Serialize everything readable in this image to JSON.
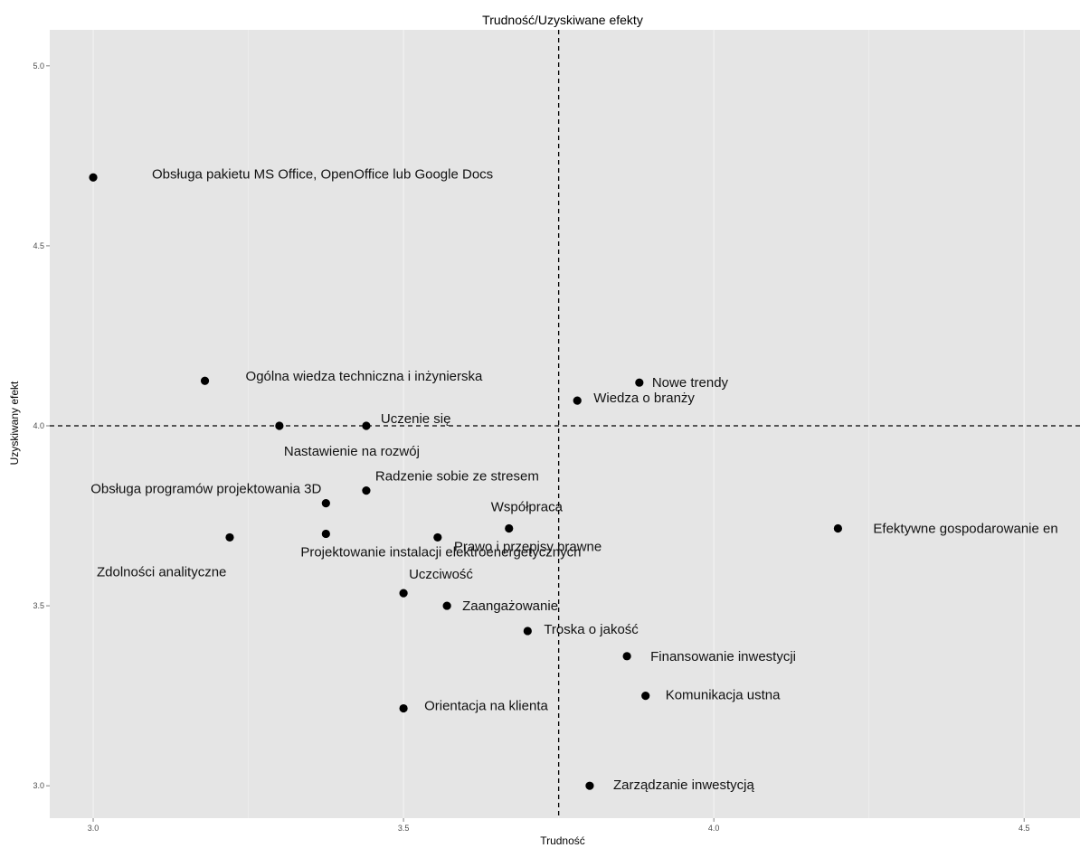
{
  "chart_data": {
    "type": "scatter",
    "title": "Trudność/Uzyskiwane efekty",
    "xlabel": "Trudność",
    "ylabel": "Uzyskiwany efekt",
    "xlim": [
      2.93,
      4.59
    ],
    "ylim": [
      2.91,
      5.1
    ],
    "xticks": [
      3.0,
      3.5,
      4.0,
      4.5
    ],
    "xtick_labels": [
      "3.0",
      "3.5",
      "4.0",
      "4.5"
    ],
    "yticks": [
      3.0,
      3.5,
      4.0,
      4.5,
      5.0
    ],
    "ytick_labels": [
      "3.0",
      "3.5",
      "4.0",
      "4.5",
      "5.0"
    ],
    "grid": true,
    "background": "#e5e5e5",
    "reference_lines": {
      "vline": 3.75,
      "hline": 4.0
    },
    "points": [
      {
        "x": 3.0,
        "y": 4.69,
        "label": "Obsługa pakietu MS Office, OpenOffice lub Google Docs"
      },
      {
        "x": 3.18,
        "y": 4.125,
        "label": "Ogólna wiedza techniczna i inżynierska"
      },
      {
        "x": 3.3,
        "y": 4.0,
        "label": "Nastawienie na rozwój"
      },
      {
        "x": 3.44,
        "y": 4.0,
        "label": "Uczenie się"
      },
      {
        "x": 3.44,
        "y": 3.82,
        "label": "Radzenie sobie ze stresem"
      },
      {
        "x": 3.375,
        "y": 3.785,
        "label": "Obsługa programów projektowania 3D"
      },
      {
        "x": 3.375,
        "y": 3.7,
        "label": "Projektowanie instalacji elektroenergetycznych"
      },
      {
        "x": 3.22,
        "y": 3.69,
        "label": "Zdolności analityczne"
      },
      {
        "x": 3.555,
        "y": 3.69,
        "label": "Prawo i przepisy prawne"
      },
      {
        "x": 3.67,
        "y": 3.715,
        "label": "Współpraca"
      },
      {
        "x": 3.5,
        "y": 3.535,
        "label": "Uczciwość"
      },
      {
        "x": 3.57,
        "y": 3.5,
        "label": "Zaangażowanie"
      },
      {
        "x": 3.7,
        "y": 3.43,
        "label": "Troska o jakość"
      },
      {
        "x": 3.86,
        "y": 3.36,
        "label": "Finansowanie inwestycji"
      },
      {
        "x": 3.89,
        "y": 3.25,
        "label": "Komunikacja ustna"
      },
      {
        "x": 3.5,
        "y": 3.215,
        "label": "Orientacja na klienta"
      },
      {
        "x": 3.8,
        "y": 3.0,
        "label": "Zarządzanie inwestycją"
      },
      {
        "x": 3.78,
        "y": 4.07,
        "label": "Wiedza o branży"
      },
      {
        "x": 3.88,
        "y": 4.12,
        "label": "Nowe trendy"
      },
      {
        "x": 4.2,
        "y": 3.715,
        "label": "Efektywne gospodarowanie en"
      }
    ]
  }
}
